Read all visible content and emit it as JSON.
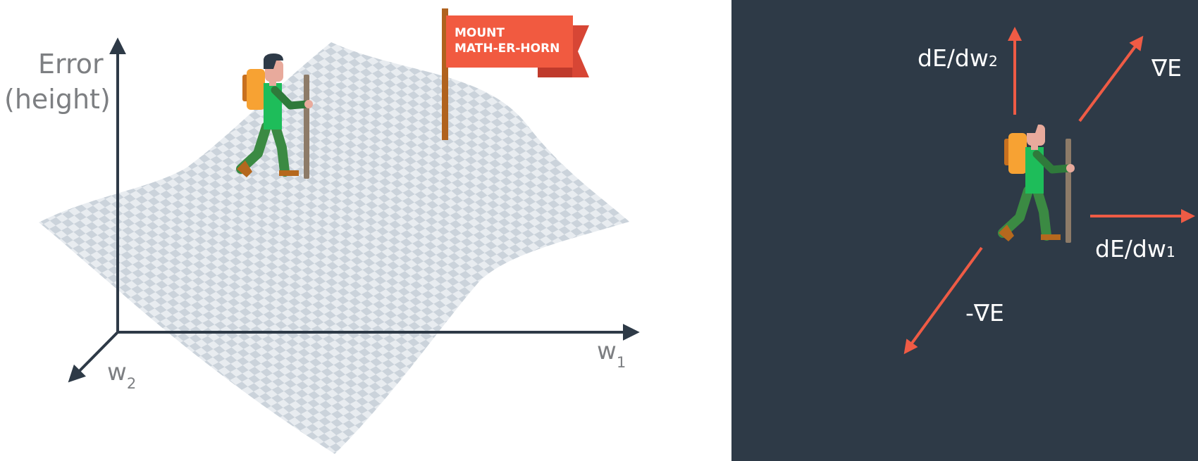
{
  "left_panel": {
    "y_axis_label_line1": "Error",
    "y_axis_label_line2": "(height)",
    "w1_label": "w",
    "w1_subscript": "1",
    "w2_label": "w",
    "w2_subscript": "2",
    "flag_line1": "MOUNT",
    "flag_line2": "MATH-ER-HORN"
  },
  "right_panel": {
    "dE_dw2_label": "dE/dw",
    "dE_dw2_subscript": "2",
    "grad_label": "∇E",
    "dE_dw1_label": "dE/dw",
    "dE_dw1_subscript": "1",
    "neg_grad_label": "-∇E"
  },
  "colors": {
    "right_panel_bg": "#2e3a47",
    "arrow_red": "#ef5b45",
    "axis_dark": "#2e3a47",
    "flag_red": "#f15a40",
    "flag_shadow": "#d74635",
    "flag_pole": "#b0621e",
    "checker_light": "#e8ecf0",
    "checker_dark": "#cbd3db",
    "hiker_shirt": "#1ebd5a",
    "hiker_pants": "#3b8a43",
    "hiker_skin": "#e8aa9c",
    "hiker_hair": "#2e3a47",
    "backpack": "#f7a233",
    "backpack_dark": "#c8701f",
    "shoe": "#b5681e",
    "walking_stick": "#8d7b68"
  },
  "icons": [
    "hiker-icon",
    "flag-icon"
  ]
}
